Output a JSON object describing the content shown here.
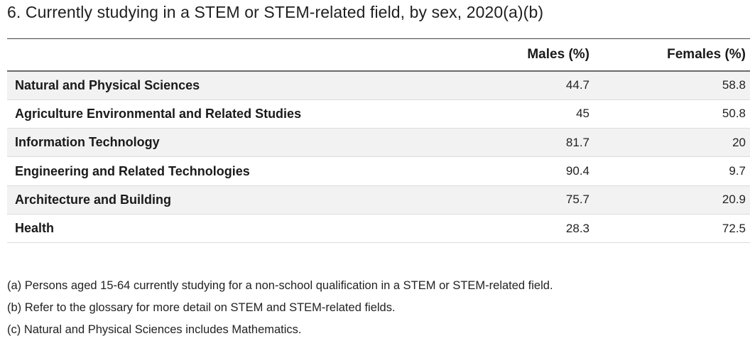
{
  "title": "6. Currently studying in a STEM or STEM-related field, by sex, 2020(a)(b)",
  "table": {
    "columns": [
      "",
      "Males (%)",
      "Females (%)"
    ],
    "rows": [
      {
        "label": "Natural and Physical Sciences",
        "males": "44.7",
        "females": "58.8"
      },
      {
        "label": "Agriculture Environmental and Related Studies",
        "males": "45",
        "females": "50.8"
      },
      {
        "label": "Information Technology",
        "males": "81.7",
        "females": "20"
      },
      {
        "label": "Engineering and Related Technologies",
        "males": "90.4",
        "females": "9.7"
      },
      {
        "label": "Architecture and Building",
        "males": "75.7",
        "females": "20.9"
      },
      {
        "label": "Health",
        "males": "28.3",
        "females": "72.5"
      }
    ]
  },
  "footnotes": [
    "(a) Persons aged 15-64 currently studying for a non-school qualification in a STEM or STEM-related field.",
    "(b) Refer to the glossary for more detail on STEM and STEM-related fields.",
    "(c) Natural and Physical Sciences includes Mathematics."
  ]
}
